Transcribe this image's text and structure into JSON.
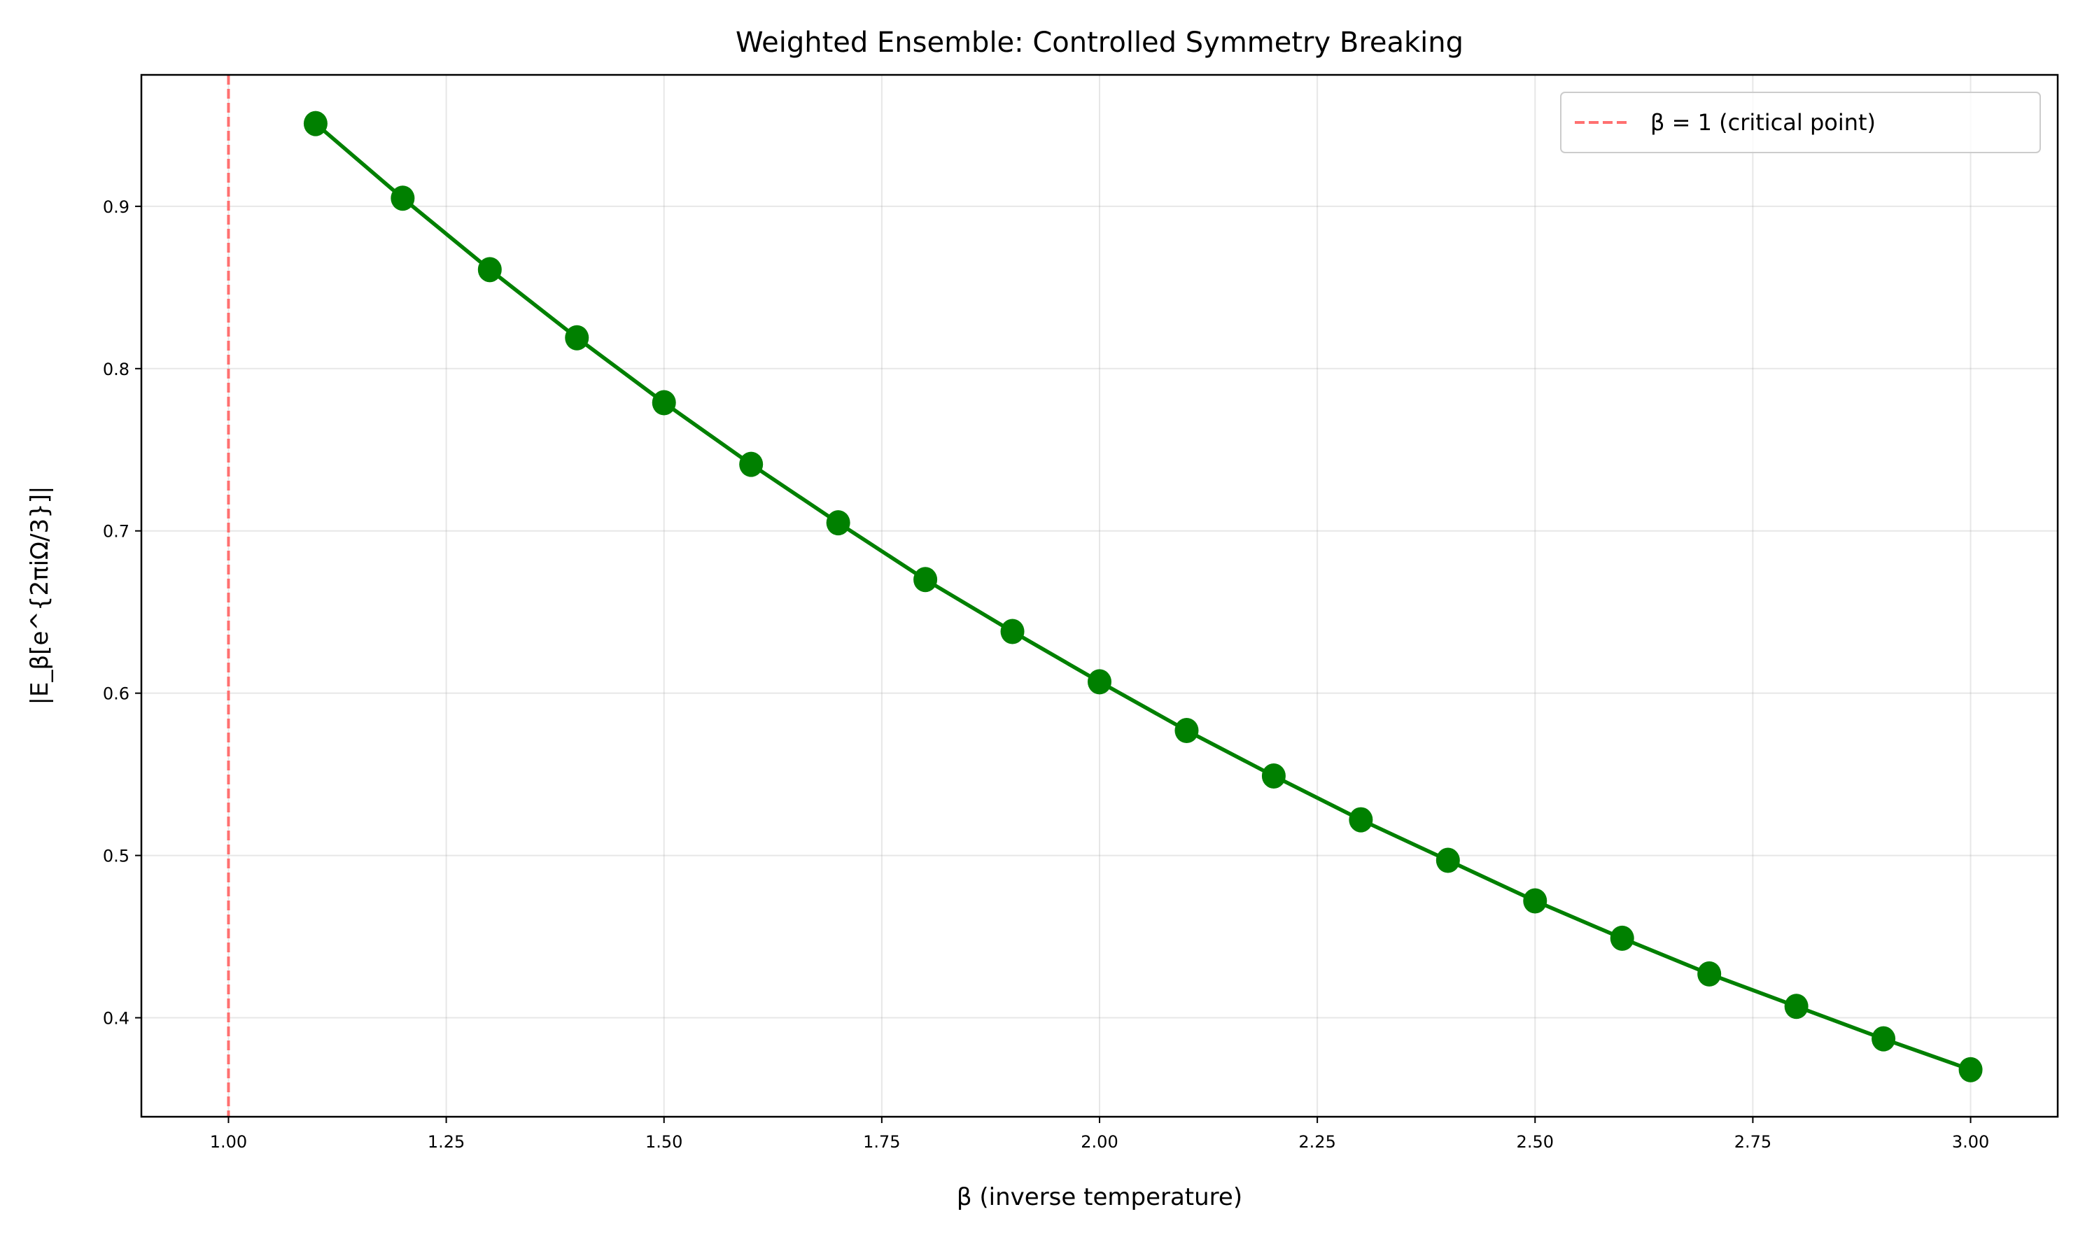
{
  "chart_data": {
    "type": "line",
    "title": "Weighted Ensemble: Controlled Symmetry Breaking",
    "xlabel": "β (inverse temperature)",
    "ylabel": "|E_β[e^{2πiΩ/3}]|",
    "xlim": [
      0.9,
      3.1
    ],
    "ylim": [
      0.339,
      0.981
    ],
    "xticks": [
      1.0,
      1.25,
      1.5,
      1.75,
      2.0,
      2.25,
      2.5,
      2.75,
      3.0
    ],
    "xtick_labels": [
      "1.00",
      "1.25",
      "1.50",
      "1.75",
      "2.00",
      "2.25",
      "2.50",
      "2.75",
      "3.00"
    ],
    "yticks": [
      0.4,
      0.5,
      0.6,
      0.7,
      0.8,
      0.9
    ],
    "ytick_labels": [
      "0.4",
      "0.5",
      "0.6",
      "0.7",
      "0.8",
      "0.9"
    ],
    "grid": true,
    "legend_position": "top-right",
    "series": [
      {
        "color": "#008000",
        "marker": "circle",
        "x": [
          1.1,
          1.2,
          1.3,
          1.4,
          1.5,
          1.6,
          1.7,
          1.8,
          1.9,
          2.0,
          2.1,
          2.2,
          2.3,
          2.4,
          2.5,
          2.6,
          2.7,
          2.8,
          2.9,
          3.0
        ],
        "y": [
          0.951,
          0.905,
          0.861,
          0.819,
          0.779,
          0.741,
          0.705,
          0.67,
          0.638,
          0.607,
          0.577,
          0.549,
          0.522,
          0.497,
          0.472,
          0.449,
          0.427,
          0.407,
          0.387,
          0.368
        ]
      }
    ],
    "reference_lines": [
      {
        "orientation": "vertical",
        "x": 1.0,
        "color": "#ff7070",
        "style": "dashed",
        "label": "β = 1 (critical point)"
      }
    ]
  }
}
